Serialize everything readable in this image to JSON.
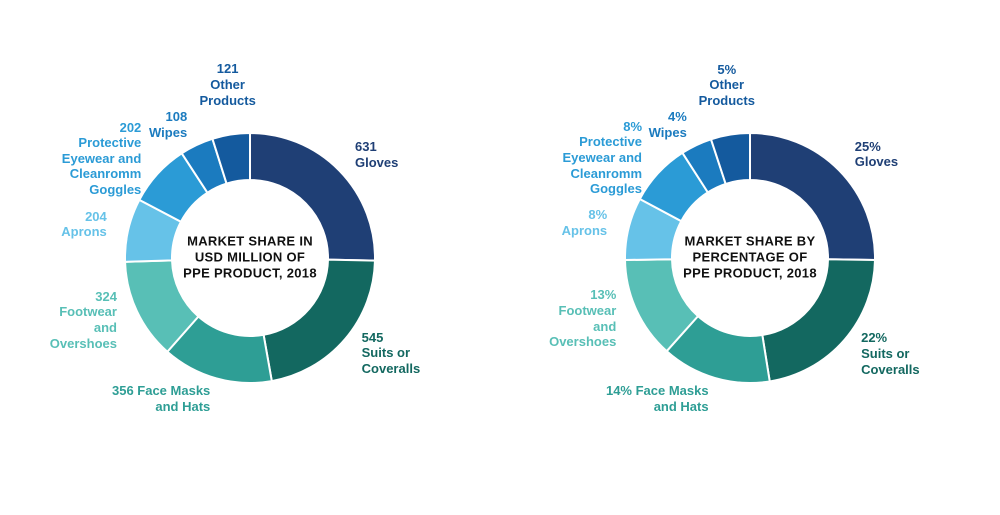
{
  "background_color": "#ffffff",
  "donut": {
    "outer_radius": 125,
    "inner_radius": 78,
    "stroke": "#ffffff",
    "stroke_width": 2
  },
  "center_fontsize": 13,
  "label_fontsize": 13,
  "charts": [
    {
      "id": "usd",
      "center_text": "MARKET SHARE IN USD MILLION OF PPE PRODUCT, 2018",
      "type": "donut",
      "slices": [
        {
          "name": "Gloves",
          "value": 631,
          "label_prefix": "631",
          "label_text": "Gloves",
          "color": "#1f3f75"
        },
        {
          "name": "Suits or Coveralls",
          "value": 545,
          "label_prefix": "545",
          "label_text": "Suits or\nCoveralls",
          "color": "#136860"
        },
        {
          "name": "Face Masks and Hats",
          "value": 356,
          "label_prefix": "356",
          "label_text": "Face Masks\nand Hats",
          "color": "#2e9e95"
        },
        {
          "name": "Footwear and Overshoes",
          "value": 324,
          "label_prefix": "324",
          "label_text": "Footwear\nand\nOvershoes",
          "color": "#58bfb6"
        },
        {
          "name": "Aprons",
          "value": 204,
          "label_prefix": "204",
          "label_text": "Aprons",
          "color": "#66c2e8"
        },
        {
          "name": "Protective Eyewear and Cleanromm Goggles",
          "value": 202,
          "label_prefix": "202",
          "label_text": "Protective\nEyewear and\nCleanromm\nGoggles",
          "color": "#2b9bd6"
        },
        {
          "name": "Wipes",
          "value": 108,
          "label_prefix": "108",
          "label_text": "Wipes",
          "color": "#1b7bbf"
        },
        {
          "name": "Other Products",
          "value": 121,
          "label_prefix": "121",
          "label_text": "Other\nProducts",
          "color": "#145a9e"
        }
      ]
    },
    {
      "id": "pct",
      "center_text": "MARKET SHARE BY PERCENTAGE OF PPE PRODUCT, 2018",
      "type": "donut",
      "slices": [
        {
          "name": "Gloves",
          "value": 25,
          "label_prefix": "25%",
          "label_text": "Gloves",
          "color": "#1f3f75"
        },
        {
          "name": "Suits or Coveralls",
          "value": 22,
          "label_prefix": "22%",
          "label_text": "Suits or\nCoveralls",
          "color": "#136860"
        },
        {
          "name": "Face Masks and Hats",
          "value": 14,
          "label_prefix": "14%",
          "label_text": "Face Masks\nand Hats",
          "color": "#2e9e95"
        },
        {
          "name": "Footwear and Overshoes",
          "value": 13,
          "label_prefix": "13%",
          "label_text": "Footwear\nand\nOvershoes",
          "color": "#58bfb6"
        },
        {
          "name": "Aprons",
          "value": 8,
          "label_prefix": "8%",
          "label_text": "Aprons",
          "color": "#66c2e8"
        },
        {
          "name": "Protective Eyewear and Cleanromm Goggles",
          "value": 8,
          "label_prefix": "8%",
          "label_text": "Protective\nEyewear and\nCleanromm\nGoggles",
          "color": "#2b9bd6"
        },
        {
          "name": "Wipes",
          "value": 4,
          "label_prefix": "4%",
          "label_text": "Wipes",
          "color": "#1b7bbf"
        },
        {
          "name": "Other Products",
          "value": 5,
          "label_prefix": "5%",
          "label_text": "Other\nProducts",
          "color": "#145a9e"
        }
      ]
    }
  ]
}
